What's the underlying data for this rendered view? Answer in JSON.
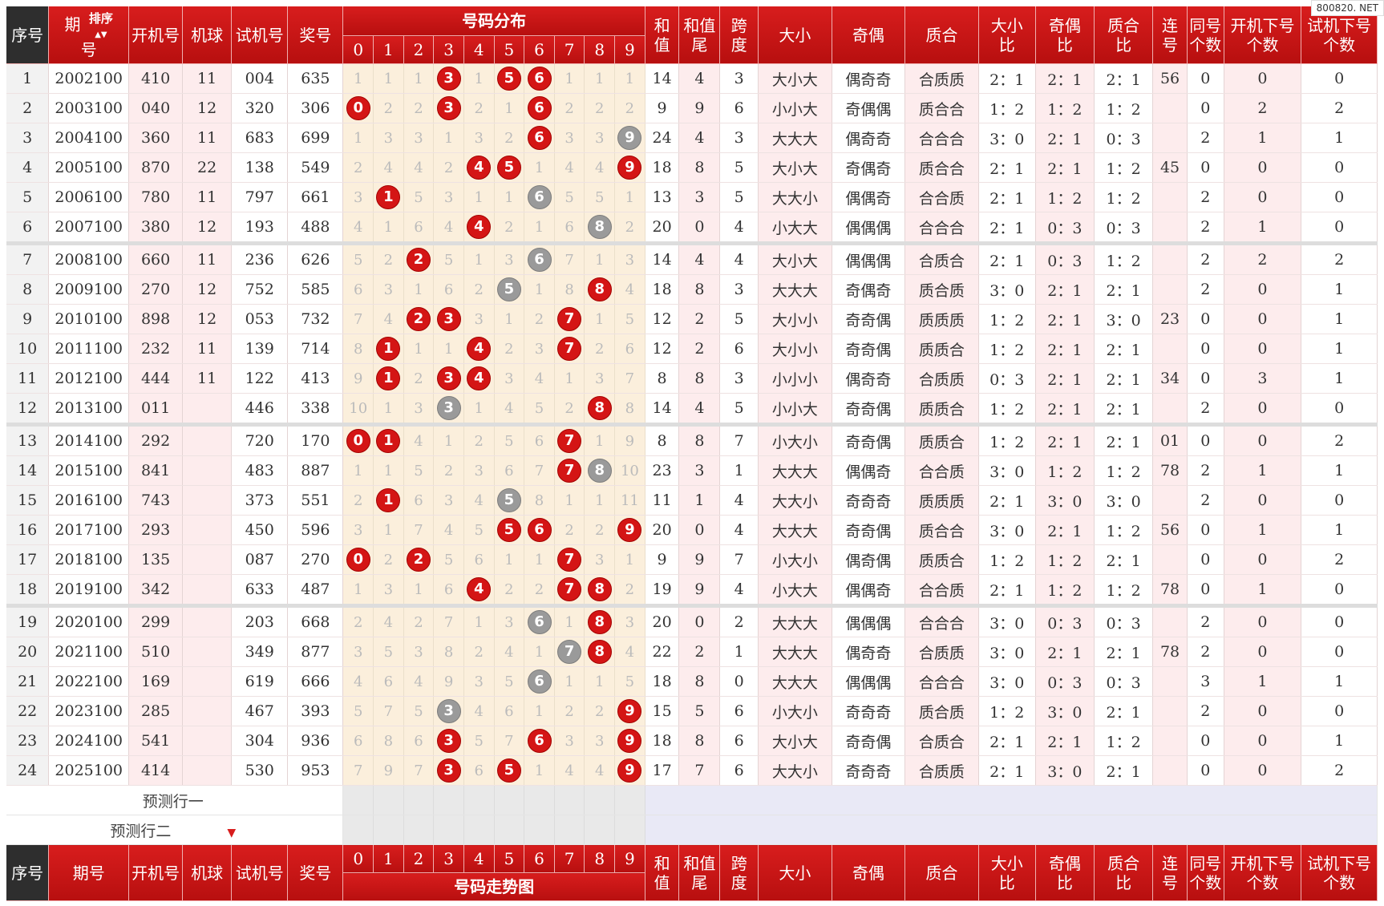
{
  "watermark": "800820. NET",
  "headers": {
    "seq": "序号",
    "period_top": "期",
    "period_bottom": "号",
    "sort": "排序",
    "open": "开机号",
    "machine": "机球",
    "test": "试机号",
    "prize": "奖号",
    "dist": "号码分布",
    "digits": [
      "0",
      "1",
      "2",
      "3",
      "4",
      "5",
      "6",
      "7",
      "8",
      "9"
    ],
    "sum_top": "和",
    "sum_bottom": "值",
    "sumtail_top": "和值",
    "sumtail_bottom": "尾",
    "span_top": "跨",
    "span_bottom": "度",
    "size": "大小",
    "parity": "奇偶",
    "prime": "质合",
    "sizeratio_top": "大小",
    "sizeratio_bottom": "比",
    "parityratio_top": "奇偶",
    "parityratio_bottom": "比",
    "primeratio_top": "质合",
    "primeratio_bottom": "比",
    "consec_top": "连",
    "consec_bottom": "号",
    "same_top": "同号",
    "same_bottom": "个数",
    "openx_top": "开机下号",
    "openx_bottom": "个数",
    "testx_top": "试机下号",
    "testx_bottom": "个数"
  },
  "footer": {
    "period": "期号",
    "trend": "号码走势图"
  },
  "prediction": {
    "row1": "预测行一",
    "row2": "预测行二"
  },
  "rows": [
    {
      "seq": "1",
      "period": "2002100",
      "open": "410",
      "machine": "11",
      "test": "004",
      "prize": "635",
      "cells": [
        "1",
        "1",
        "1",
        "3",
        "1",
        "5",
        "6",
        "1",
        "1",
        "1"
      ],
      "hits": [
        0,
        0,
        0,
        1,
        0,
        1,
        1,
        0,
        0,
        0
      ],
      "sum": "14",
      "tail": "4",
      "span": "3",
      "size": "大小大",
      "parity": "偶奇奇",
      "prime": "合质质",
      "sr": "2：1",
      "pr": "2：1",
      "qr": "2：1",
      "consec": "56",
      "same": "0",
      "openx": "0",
      "testx": "0"
    },
    {
      "seq": "2",
      "period": "2003100",
      "open": "040",
      "machine": "12",
      "test": "320",
      "prize": "306",
      "cells": [
        "0",
        "2",
        "2",
        "3",
        "2",
        "1",
        "6",
        "2",
        "2",
        "2"
      ],
      "hits": [
        1,
        0,
        0,
        1,
        0,
        0,
        1,
        0,
        0,
        0
      ],
      "sum": "9",
      "tail": "9",
      "span": "6",
      "size": "小小大",
      "parity": "奇偶偶",
      "prime": "质合合",
      "sr": "1：2",
      "pr": "1：2",
      "qr": "1：2",
      "consec": "",
      "same": "0",
      "openx": "2",
      "testx": "2"
    },
    {
      "seq": "3",
      "period": "2004100",
      "open": "360",
      "machine": "11",
      "test": "683",
      "prize": "699",
      "cells": [
        "1",
        "3",
        "3",
        "1",
        "3",
        "2",
        "6",
        "3",
        "3",
        "9"
      ],
      "hits": [
        0,
        0,
        0,
        0,
        0,
        0,
        1,
        0,
        0,
        2
      ],
      "sum": "24",
      "tail": "4",
      "span": "3",
      "size": "大大大",
      "parity": "偶奇奇",
      "prime": "合合合",
      "sr": "3：0",
      "pr": "2：1",
      "qr": "0：3",
      "consec": "",
      "same": "2",
      "openx": "1",
      "testx": "1"
    },
    {
      "seq": "4",
      "period": "2005100",
      "open": "870",
      "machine": "22",
      "test": "138",
      "prize": "549",
      "cells": [
        "2",
        "4",
        "4",
        "2",
        "4",
        "5",
        "1",
        "4",
        "4",
        "9"
      ],
      "hits": [
        0,
        0,
        0,
        0,
        1,
        1,
        0,
        0,
        0,
        1
      ],
      "sum": "18",
      "tail": "8",
      "span": "5",
      "size": "大小大",
      "parity": "奇偶奇",
      "prime": "质合合",
      "sr": "2：1",
      "pr": "2：1",
      "qr": "1：2",
      "consec": "45",
      "same": "0",
      "openx": "0",
      "testx": "0"
    },
    {
      "seq": "5",
      "period": "2006100",
      "open": "780",
      "machine": "11",
      "test": "797",
      "prize": "661",
      "cells": [
        "3",
        "1",
        "5",
        "3",
        "1",
        "1",
        "6",
        "5",
        "5",
        "1"
      ],
      "hits": [
        0,
        1,
        0,
        0,
        0,
        0,
        2,
        0,
        0,
        0
      ],
      "sum": "13",
      "tail": "3",
      "span": "5",
      "size": "大大小",
      "parity": "偶偶奇",
      "prime": "合合质",
      "sr": "2：1",
      "pr": "1：2",
      "qr": "1：2",
      "consec": "",
      "same": "2",
      "openx": "0",
      "testx": "0"
    },
    {
      "seq": "6",
      "period": "2007100",
      "open": "380",
      "machine": "12",
      "test": "193",
      "prize": "488",
      "cells": [
        "4",
        "1",
        "6",
        "4",
        "4",
        "2",
        "1",
        "6",
        "8",
        "2"
      ],
      "hits": [
        0,
        0,
        0,
        0,
        1,
        0,
        0,
        0,
        2,
        0
      ],
      "sum": "20",
      "tail": "0",
      "span": "4",
      "size": "小大大",
      "parity": "偶偶偶",
      "prime": "合合合",
      "sr": "2：1",
      "pr": "0：3",
      "qr": "0：3",
      "consec": "",
      "same": "2",
      "openx": "1",
      "testx": "0"
    },
    {
      "seq": "7",
      "period": "2008100",
      "open": "660",
      "machine": "11",
      "test": "236",
      "prize": "626",
      "cells": [
        "5",
        "2",
        "2",
        "5",
        "1",
        "3",
        "6",
        "7",
        "1",
        "3"
      ],
      "hits": [
        0,
        0,
        1,
        0,
        0,
        0,
        2,
        0,
        0,
        0
      ],
      "sum": "14",
      "tail": "4",
      "span": "4",
      "size": "大小大",
      "parity": "偶偶偶",
      "prime": "合质合",
      "sr": "2：1",
      "pr": "0：3",
      "qr": "1：2",
      "consec": "",
      "same": "2",
      "openx": "2",
      "testx": "2",
      "gap": true
    },
    {
      "seq": "8",
      "period": "2009100",
      "open": "270",
      "machine": "12",
      "test": "752",
      "prize": "585",
      "cells": [
        "6",
        "3",
        "1",
        "6",
        "2",
        "5",
        "1",
        "8",
        "8",
        "4"
      ],
      "hits": [
        0,
        0,
        0,
        0,
        0,
        2,
        0,
        0,
        1,
        0
      ],
      "sum": "18",
      "tail": "8",
      "span": "3",
      "size": "大大大",
      "parity": "奇偶奇",
      "prime": "质合质",
      "sr": "3：0",
      "pr": "2：1",
      "qr": "2：1",
      "consec": "",
      "same": "2",
      "openx": "0",
      "testx": "1"
    },
    {
      "seq": "9",
      "period": "2010100",
      "open": "898",
      "machine": "12",
      "test": "053",
      "prize": "732",
      "cells": [
        "7",
        "4",
        "2",
        "3",
        "3",
        "1",
        "2",
        "7",
        "1",
        "5"
      ],
      "hits": [
        0,
        0,
        1,
        1,
        0,
        0,
        0,
        1,
        0,
        0
      ],
      "sum": "12",
      "tail": "2",
      "span": "5",
      "size": "大小小",
      "parity": "奇奇偶",
      "prime": "质质质",
      "sr": "1：2",
      "pr": "2：1",
      "qr": "3：0",
      "consec": "23",
      "same": "0",
      "openx": "0",
      "testx": "1"
    },
    {
      "seq": "10",
      "period": "2011100",
      "open": "232",
      "machine": "11",
      "test": "139",
      "prize": "714",
      "cells": [
        "8",
        "1",
        "1",
        "1",
        "4",
        "2",
        "3",
        "7",
        "2",
        "6"
      ],
      "hits": [
        0,
        1,
        0,
        0,
        1,
        0,
        0,
        1,
        0,
        0
      ],
      "sum": "12",
      "tail": "2",
      "span": "6",
      "size": "大小小",
      "parity": "奇奇偶",
      "prime": "质质合",
      "sr": "1：2",
      "pr": "2：1",
      "qr": "2：1",
      "consec": "",
      "same": "0",
      "openx": "0",
      "testx": "1"
    },
    {
      "seq": "11",
      "period": "2012100",
      "open": "444",
      "machine": "11",
      "test": "122",
      "prize": "413",
      "cells": [
        "9",
        "1",
        "2",
        "3",
        "4",
        "3",
        "4",
        "1",
        "3",
        "7"
      ],
      "hits": [
        0,
        1,
        0,
        1,
        1,
        0,
        0,
        0,
        0,
        0
      ],
      "sum": "8",
      "tail": "8",
      "span": "3",
      "size": "小小小",
      "parity": "偶奇奇",
      "prime": "合质质",
      "sr": "0：3",
      "pr": "2：1",
      "qr": "2：1",
      "consec": "34",
      "same": "0",
      "openx": "3",
      "testx": "1"
    },
    {
      "seq": "12",
      "period": "2013100",
      "open": "011",
      "machine": "",
      "test": "446",
      "prize": "338",
      "cells": [
        "10",
        "1",
        "3",
        "3",
        "1",
        "4",
        "5",
        "2",
        "8",
        "8"
      ],
      "hits": [
        0,
        0,
        0,
        2,
        0,
        0,
        0,
        0,
        1,
        0
      ],
      "sum": "14",
      "tail": "4",
      "span": "5",
      "size": "小小大",
      "parity": "奇奇偶",
      "prime": "质质合",
      "sr": "1：2",
      "pr": "2：1",
      "qr": "2：1",
      "consec": "",
      "same": "2",
      "openx": "0",
      "testx": "0"
    },
    {
      "seq": "13",
      "period": "2014100",
      "open": "292",
      "machine": "",
      "test": "720",
      "prize": "170",
      "cells": [
        "0",
        "1",
        "4",
        "1",
        "2",
        "5",
        "6",
        "7",
        "1",
        "9"
      ],
      "hits": [
        1,
        1,
        0,
        0,
        0,
        0,
        0,
        1,
        0,
        0
      ],
      "sum": "8",
      "tail": "8",
      "span": "7",
      "size": "小大小",
      "parity": "奇奇偶",
      "prime": "质质合",
      "sr": "1：2",
      "pr": "2：1",
      "qr": "2：1",
      "consec": "01",
      "same": "0",
      "openx": "0",
      "testx": "2",
      "gap": true
    },
    {
      "seq": "14",
      "period": "2015100",
      "open": "841",
      "machine": "",
      "test": "483",
      "prize": "887",
      "cells": [
        "1",
        "1",
        "5",
        "2",
        "3",
        "6",
        "7",
        "7",
        "8",
        "10"
      ],
      "hits": [
        0,
        0,
        0,
        0,
        0,
        0,
        0,
        1,
        2,
        0
      ],
      "sum": "23",
      "tail": "3",
      "span": "1",
      "size": "大大大",
      "parity": "偶偶奇",
      "prime": "合合质",
      "sr": "3：0",
      "pr": "1：2",
      "qr": "1：2",
      "consec": "78",
      "same": "2",
      "openx": "1",
      "testx": "1"
    },
    {
      "seq": "15",
      "period": "2016100",
      "open": "743",
      "machine": "",
      "test": "373",
      "prize": "551",
      "cells": [
        "2",
        "1",
        "6",
        "3",
        "4",
        "5",
        "8",
        "1",
        "1",
        "11"
      ],
      "hits": [
        0,
        1,
        0,
        0,
        0,
        2,
        0,
        0,
        0,
        0
      ],
      "sum": "11",
      "tail": "1",
      "span": "4",
      "size": "大大小",
      "parity": "奇奇奇",
      "prime": "质质质",
      "sr": "2：1",
      "pr": "3：0",
      "qr": "3：0",
      "consec": "",
      "same": "2",
      "openx": "0",
      "testx": "0"
    },
    {
      "seq": "16",
      "period": "2017100",
      "open": "293",
      "machine": "",
      "test": "450",
      "prize": "596",
      "cells": [
        "3",
        "1",
        "7",
        "4",
        "5",
        "5",
        "6",
        "2",
        "2",
        "9"
      ],
      "hits": [
        0,
        0,
        0,
        0,
        0,
        1,
        1,
        0,
        0,
        1
      ],
      "sum": "20",
      "tail": "0",
      "span": "4",
      "size": "大大大",
      "parity": "奇奇偶",
      "prime": "质合合",
      "sr": "3：0",
      "pr": "2：1",
      "qr": "1：2",
      "consec": "56",
      "same": "0",
      "openx": "1",
      "testx": "1"
    },
    {
      "seq": "17",
      "period": "2018100",
      "open": "135",
      "machine": "",
      "test": "087",
      "prize": "270",
      "cells": [
        "0",
        "2",
        "2",
        "5",
        "6",
        "1",
        "1",
        "7",
        "3",
        "1"
      ],
      "hits": [
        1,
        0,
        1,
        0,
        0,
        0,
        0,
        1,
        0,
        0
      ],
      "sum": "9",
      "tail": "9",
      "span": "7",
      "size": "小大小",
      "parity": "偶奇偶",
      "prime": "质质合",
      "sr": "1：2",
      "pr": "1：2",
      "qr": "2：1",
      "consec": "",
      "same": "0",
      "openx": "0",
      "testx": "2"
    },
    {
      "seq": "18",
      "period": "2019100",
      "open": "342",
      "machine": "",
      "test": "633",
      "prize": "487",
      "cells": [
        "1",
        "3",
        "1",
        "6",
        "4",
        "2",
        "2",
        "7",
        "8",
        "2"
      ],
      "hits": [
        0,
        0,
        0,
        0,
        1,
        0,
        0,
        1,
        1,
        0
      ],
      "sum": "19",
      "tail": "9",
      "span": "4",
      "size": "小大大",
      "parity": "偶偶奇",
      "prime": "合合质",
      "sr": "2：1",
      "pr": "1：2",
      "qr": "1：2",
      "consec": "78",
      "same": "0",
      "openx": "1",
      "testx": "0"
    },
    {
      "seq": "19",
      "period": "2020100",
      "open": "299",
      "machine": "",
      "test": "203",
      "prize": "668",
      "cells": [
        "2",
        "4",
        "2",
        "7",
        "1",
        "3",
        "6",
        "1",
        "8",
        "3"
      ],
      "hits": [
        0,
        0,
        0,
        0,
        0,
        0,
        2,
        0,
        1,
        0
      ],
      "sum": "20",
      "tail": "0",
      "span": "2",
      "size": "大大大",
      "parity": "偶偶偶",
      "prime": "合合合",
      "sr": "3：0",
      "pr": "0：3",
      "qr": "0：3",
      "consec": "",
      "same": "2",
      "openx": "0",
      "testx": "0",
      "gap": true
    },
    {
      "seq": "20",
      "period": "2021100",
      "open": "510",
      "machine": "",
      "test": "349",
      "prize": "877",
      "cells": [
        "3",
        "5",
        "3",
        "8",
        "2",
        "4",
        "1",
        "7",
        "8",
        "4"
      ],
      "hits": [
        0,
        0,
        0,
        0,
        0,
        0,
        0,
        2,
        1,
        0
      ],
      "sum": "22",
      "tail": "2",
      "span": "1",
      "size": "大大大",
      "parity": "偶奇奇",
      "prime": "合质质",
      "sr": "3：0",
      "pr": "2：1",
      "qr": "2：1",
      "consec": "78",
      "same": "2",
      "openx": "0",
      "testx": "0"
    },
    {
      "seq": "21",
      "period": "2022100",
      "open": "169",
      "machine": "",
      "test": "619",
      "prize": "666",
      "cells": [
        "4",
        "6",
        "4",
        "9",
        "3",
        "5",
        "6",
        "1",
        "1",
        "5"
      ],
      "hits": [
        0,
        0,
        0,
        0,
        0,
        0,
        2,
        0,
        0,
        0
      ],
      "sum": "18",
      "tail": "8",
      "span": "0",
      "size": "大大大",
      "parity": "偶偶偶",
      "prime": "合合合",
      "sr": "3：0",
      "pr": "0：3",
      "qr": "0：3",
      "consec": "",
      "same": "3",
      "openx": "1",
      "testx": "1"
    },
    {
      "seq": "22",
      "period": "2023100",
      "open": "285",
      "machine": "",
      "test": "467",
      "prize": "393",
      "cells": [
        "5",
        "7",
        "5",
        "3",
        "4",
        "6",
        "1",
        "2",
        "2",
        "9"
      ],
      "hits": [
        0,
        0,
        0,
        2,
        0,
        0,
        0,
        0,
        0,
        1
      ],
      "sum": "15",
      "tail": "5",
      "span": "6",
      "size": "小大小",
      "parity": "奇奇奇",
      "prime": "质合质",
      "sr": "1：2",
      "pr": "3：0",
      "qr": "2：1",
      "consec": "",
      "same": "2",
      "openx": "0",
      "testx": "0"
    },
    {
      "seq": "23",
      "period": "2024100",
      "open": "541",
      "machine": "",
      "test": "304",
      "prize": "936",
      "cells": [
        "6",
        "8",
        "6",
        "3",
        "5",
        "7",
        "6",
        "3",
        "3",
        "9"
      ],
      "hits": [
        0,
        0,
        0,
        1,
        0,
        0,
        1,
        0,
        0,
        1
      ],
      "sum": "18",
      "tail": "8",
      "span": "6",
      "size": "大小大",
      "parity": "奇奇偶",
      "prime": "合质合",
      "sr": "2：1",
      "pr": "2：1",
      "qr": "1：2",
      "consec": "",
      "same": "0",
      "openx": "0",
      "testx": "1"
    },
    {
      "seq": "24",
      "period": "2025100",
      "open": "414",
      "machine": "",
      "test": "530",
      "prize": "953",
      "cells": [
        "7",
        "9",
        "7",
        "3",
        "6",
        "5",
        "1",
        "4",
        "4",
        "9"
      ],
      "hits": [
        0,
        0,
        0,
        1,
        0,
        1,
        0,
        0,
        0,
        1
      ],
      "sum": "17",
      "tail": "7",
      "span": "6",
      "size": "大大小",
      "parity": "奇奇奇",
      "prime": "合质质",
      "sr": "2：1",
      "pr": "3：0",
      "qr": "2：1",
      "consec": "",
      "same": "0",
      "openx": "0",
      "testx": "2"
    }
  ]
}
